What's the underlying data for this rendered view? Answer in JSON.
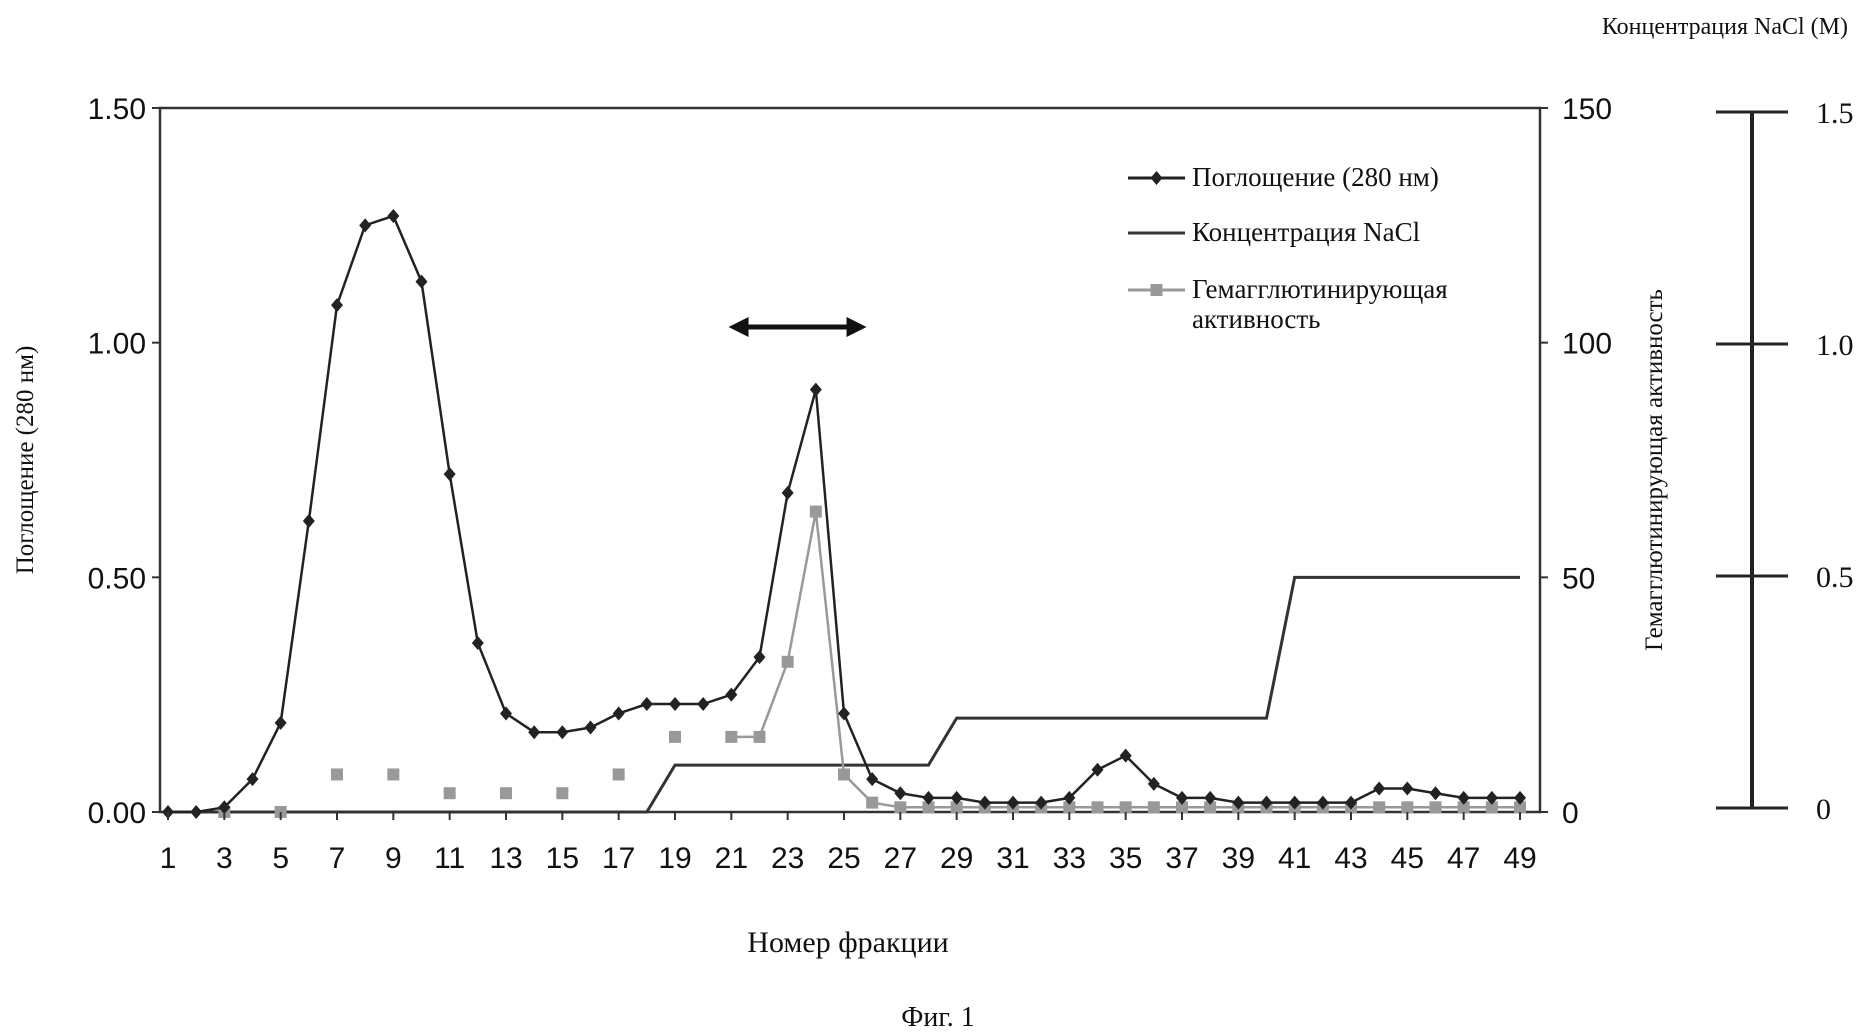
{
  "chart_data": {
    "type": "line",
    "caption": "Фиг. 1",
    "xlabel": "Номер фракции",
    "ylabel_left": "Поглощение (280 нм)",
    "ylabel_right": "Гемагглютинирующая активность",
    "ylabel_far_right": "Концентрация NaCl (M)",
    "x_ticks": [
      "1",
      "3",
      "5",
      "7",
      "9",
      "11",
      "13",
      "15",
      "17",
      "19",
      "21",
      "23",
      "25",
      "27",
      "29",
      "31",
      "33",
      "35",
      "37",
      "39",
      "41",
      "43",
      "45",
      "47",
      "49"
    ],
    "y_left_ticks": [
      "0.00",
      "0.50",
      "1.00",
      "1.50"
    ],
    "y_right_ticks": [
      "0",
      "50",
      "100",
      "150"
    ],
    "y_far_right_ticks": [
      "0",
      "0.5",
      "1.0",
      "1.5"
    ],
    "xlim": [
      1,
      49
    ],
    "ylim_left": [
      0,
      1.5
    ],
    "ylim_right": [
      0,
      150
    ],
    "ylim_nacl": [
      0,
      1.5
    ],
    "legend": [
      {
        "label": "Поглощение (280 нм)",
        "series": "absorbance"
      },
      {
        "label": "Концентрация NaCl",
        "series": "nacl"
      },
      {
        "label": "Гемагглютинирующая активность",
        "series": "activity"
      }
    ],
    "series": [
      {
        "key": "absorbance",
        "name": "Поглощение (280 нм)",
        "color": "#222222",
        "marker": "diamond",
        "axis": "left",
        "x": [
          1,
          2,
          3,
          4,
          5,
          6,
          7,
          8,
          9,
          10,
          11,
          12,
          13,
          14,
          15,
          16,
          17,
          18,
          19,
          20,
          21,
          22,
          23,
          24,
          25,
          26,
          27,
          28,
          29,
          30,
          31,
          32,
          33,
          34,
          35,
          36,
          37,
          38,
          39,
          40,
          41,
          42,
          43,
          44,
          45,
          46,
          47,
          48,
          49
        ],
        "values": [
          0.0,
          0.0,
          0.01,
          0.07,
          0.19,
          0.62,
          1.08,
          1.25,
          1.27,
          1.13,
          0.72,
          0.36,
          0.21,
          0.17,
          0.17,
          0.18,
          0.21,
          0.23,
          0.23,
          0.23,
          0.25,
          0.33,
          0.68,
          0.9,
          0.21,
          0.07,
          0.04,
          0.03,
          0.03,
          0.02,
          0.02,
          0.02,
          0.03,
          0.09,
          0.12,
          0.06,
          0.03,
          0.03,
          0.02,
          0.02,
          0.02,
          0.02,
          0.02,
          0.05,
          0.05,
          0.04,
          0.03,
          0.03,
          0.03
        ]
      },
      {
        "key": "nacl",
        "name": "Концентрация NaCl",
        "color": "#333333",
        "marker": "none",
        "axis": "nacl",
        "x": [
          1,
          18,
          19,
          28,
          29,
          40,
          41,
          49
        ],
        "values": [
          0,
          0,
          0.1,
          0.1,
          0.2,
          0.2,
          0.5,
          0.5
        ]
      },
      {
        "key": "activity",
        "name": "Гемагглютинирующая активность",
        "color": "#999999",
        "marker": "square",
        "axis": "right",
        "x": [
          3,
          5,
          7,
          9,
          11,
          13,
          15,
          17,
          19,
          21,
          22,
          23,
          24,
          25,
          26,
          27,
          28,
          29,
          30,
          31,
          32,
          33,
          34,
          35,
          36,
          37,
          38,
          39,
          40,
          41,
          42,
          43,
          44,
          45,
          46,
          47,
          48,
          49
        ],
        "values": [
          0,
          0,
          8,
          8,
          4,
          4,
          4,
          8,
          16,
          16,
          16,
          32,
          64,
          8,
          2,
          1,
          1,
          1,
          1,
          1,
          1,
          1,
          1,
          1,
          1,
          1,
          1,
          1,
          1,
          1,
          1,
          1,
          1,
          1,
          1,
          1,
          1,
          1
        ]
      }
    ],
    "annotation": {
      "type": "double-arrow",
      "x_from": 20.9,
      "x_to": 25.8
    }
  }
}
